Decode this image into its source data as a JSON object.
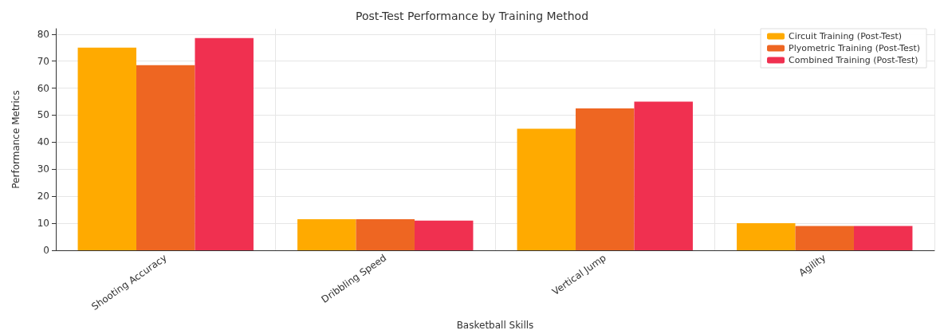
{
  "chart_data": {
    "type": "bar",
    "title": "Post-Test Performance by Training Method",
    "xlabel": "Basketball Skills",
    "ylabel": "Performance Metrics",
    "categories": [
      "Shooting Accuracy",
      "Dribbling Speed",
      "Vertical Jump",
      "Agility"
    ],
    "series": [
      {
        "name": "Circuit Training (Post-Test)",
        "color": "#ffaa00",
        "values": [
          75,
          11.5,
          45,
          10
        ]
      },
      {
        "name": "Plyometric Training (Post-Test)",
        "color": "#ee6622",
        "values": [
          68.5,
          11.5,
          52.5,
          9
        ]
      },
      {
        "name": "Combined Training (Post-Test)",
        "color": "#f03050",
        "values": [
          78.5,
          11,
          55,
          9
        ]
      }
    ],
    "ylim": [
      0,
      82
    ],
    "yticks": [
      0,
      10,
      20,
      30,
      40,
      50,
      60,
      70,
      80
    ],
    "grid": true,
    "legend": "top right"
  }
}
